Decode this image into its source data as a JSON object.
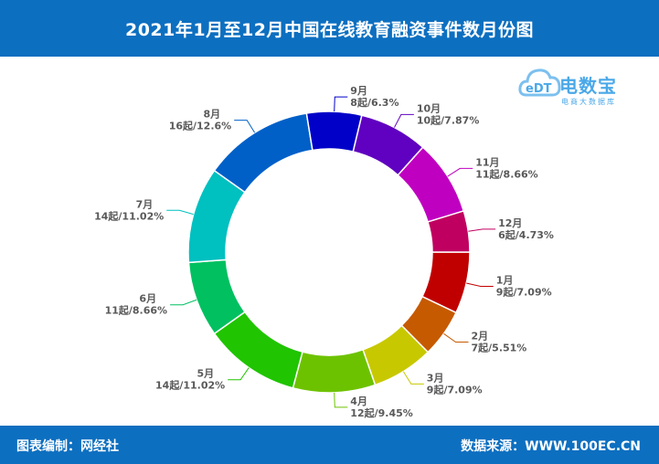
{
  "header": {
    "title": "2021年1月至12月中国在线教育融资事件数月份图"
  },
  "footer": {
    "editor": "图表编制：网经社",
    "source": "数据来源：WWW.100EC.CN"
  },
  "logo": {
    "name": "电数宝",
    "subtitle": "电商大数据库",
    "mark": "eDT"
  },
  "chart_data": {
    "type": "pie",
    "donut": true,
    "categories": [
      "1月",
      "2月",
      "3月",
      "4月",
      "5月",
      "6月",
      "7月",
      "8月",
      "9月",
      "10月",
      "11月",
      "12月"
    ],
    "values": [
      9,
      7,
      9,
      12,
      14,
      11,
      14,
      16,
      8,
      10,
      11,
      6
    ],
    "value_labels": [
      "9起/7.09%",
      "7起/5.51%",
      "9起/7.09%",
      "12起/9.45%",
      "14起/11.02%",
      "11起/8.66%",
      "14起/11.02%",
      "16起/12.6%",
      "8起/6.3%",
      "10起/7.87%",
      "11起/8.66%",
      "6起/4.73%"
    ],
    "colors": [
      "#c00000",
      "#c65a00",
      "#c8c800",
      "#6dc200",
      "#20c400",
      "#00c060",
      "#00c0c0",
      "#0060c8",
      "#0000c8",
      "#6000c0",
      "#c000c0",
      "#c00060"
    ],
    "start": "1月 starts at 3 o'clock, clockwise"
  }
}
